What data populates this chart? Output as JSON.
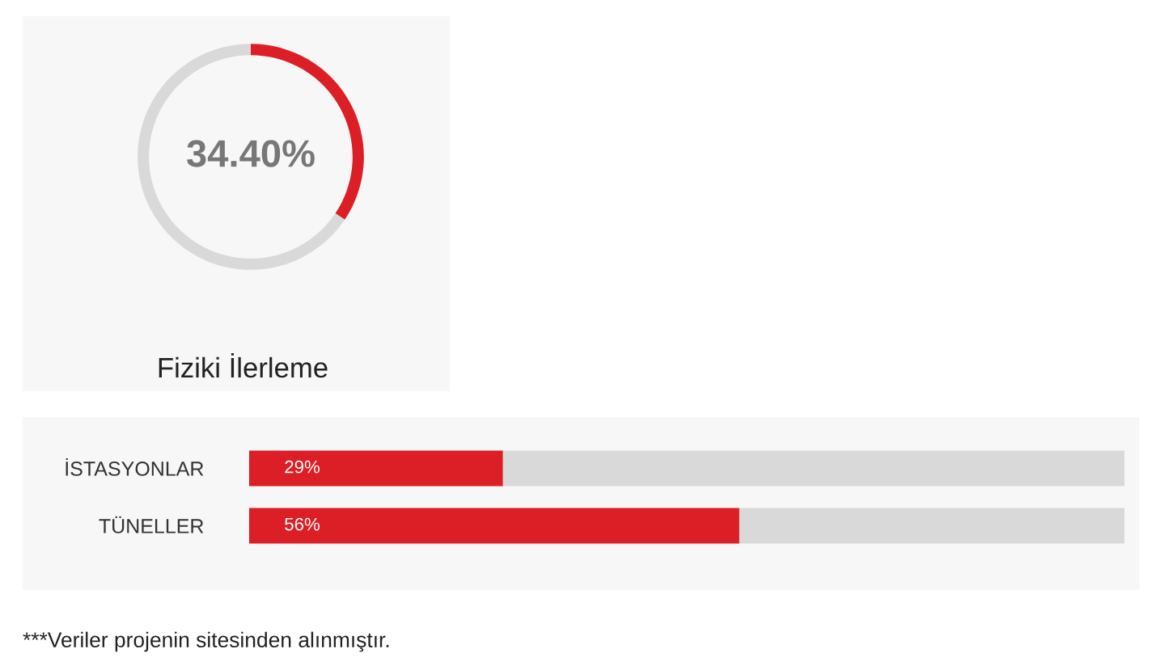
{
  "chart_data": [
    {
      "type": "donut",
      "title": "Fiziki İlerleme",
      "categories": [
        null,
        null
      ],
      "values": [
        34.4,
        65.6
      ],
      "colors": [
        "#dc1f26",
        "#d9d9d9"
      ],
      "value_labels": [
        "34.40%",
        null
      ]
    },
    {
      "type": "bar",
      "orientation": "horizontal",
      "stacked": true,
      "categories": [
        "İSTASYONLAR",
        "TÜNELLER"
      ],
      "series": [
        {
          "color": "#dc1f26",
          "values": [
            29,
            56
          ],
          "value_labels": [
            "29%",
            "56%"
          ]
        },
        {
          "color": "#d9d9d9",
          "values": [
            71,
            44
          ]
        }
      ],
      "xlim": [
        0,
        100
      ],
      "tick_labels": "y",
      "annotations": [
        "***Veriler projenin sitesinden alınmıştır."
      ]
    }
  ]
}
